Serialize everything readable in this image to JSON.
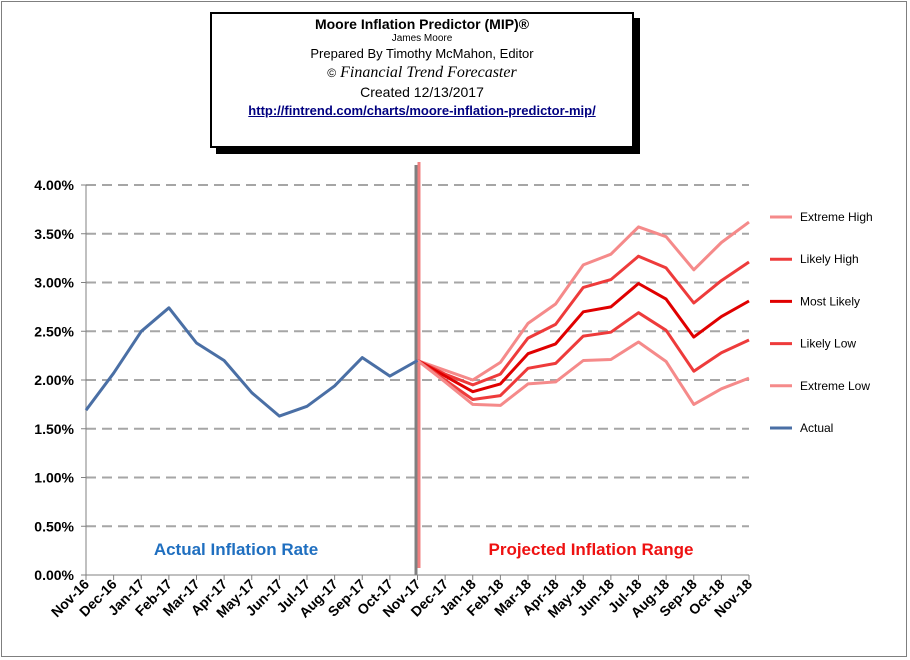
{
  "header": {
    "title": "Moore Inflation Predictor (MIP)®",
    "author": "James Moore",
    "prepared": "Prepared  By Timothy McMahon, Editor",
    "brand": "Financial Trend Forecaster",
    "copyright_symbol": "©",
    "created": "Created  12/13/2017",
    "url": "http://fintrend.com/charts/moore-inflation-predictor-mip/"
  },
  "annotations": {
    "actual_label": "Actual Inflation Rate",
    "projected_label": "Projected Inflation Range"
  },
  "colors": {
    "actual": "#4a6fa5",
    "extreme": "#f58a8a",
    "likely": "#ee3b3b",
    "most_likely": "#e00000",
    "actual_label": "#1f6fc0",
    "projected_label": "#ee1111",
    "divider_gray": "#808080",
    "divider_red": "#f08080"
  },
  "chart_data": {
    "type": "line",
    "categories": [
      "Nov-16",
      "Dec-16",
      "Jan-17",
      "Feb-17",
      "Mar-17",
      "Apr-17",
      "May-17",
      "Jun-17",
      "Jul-17",
      "Aug-17",
      "Sep-17",
      "Oct-17",
      "Nov-17",
      "Dec-17",
      "Jan-18",
      "Feb-18",
      "Mar-18",
      "Apr-18",
      "May-18",
      "Jun-18",
      "Jul-18",
      "Aug-18",
      "Sep-18",
      "Oct-18",
      "Nov-18"
    ],
    "y_ticks": [
      "0.00%",
      "0.50%",
      "1.00%",
      "1.50%",
      "2.00%",
      "2.50%",
      "3.00%",
      "3.50%",
      "4.00%"
    ],
    "ylim": [
      0,
      4.0
    ],
    "grid": true,
    "legend_position": "right",
    "series": [
      {
        "name": "Extreme High",
        "color_key": "extreme",
        "values": [
          null,
          null,
          null,
          null,
          null,
          null,
          null,
          null,
          null,
          null,
          null,
          null,
          2.2,
          2.1,
          2.0,
          2.18,
          2.58,
          2.78,
          3.18,
          3.29,
          3.57,
          3.47,
          3.13,
          3.41,
          3.62
        ]
      },
      {
        "name": "Likely High",
        "color_key": "likely",
        "values": [
          null,
          null,
          null,
          null,
          null,
          null,
          null,
          null,
          null,
          null,
          null,
          null,
          2.2,
          2.06,
          1.95,
          2.06,
          2.43,
          2.57,
          2.95,
          3.03,
          3.27,
          3.15,
          2.79,
          3.02,
          3.21
        ]
      },
      {
        "name": "Most Likely",
        "color_key": "most_likely",
        "values": [
          null,
          null,
          null,
          null,
          null,
          null,
          null,
          null,
          null,
          null,
          null,
          null,
          2.2,
          2.04,
          1.88,
          1.96,
          2.27,
          2.37,
          2.7,
          2.75,
          2.99,
          2.83,
          2.44,
          2.65,
          2.81
        ]
      },
      {
        "name": "Likely Low",
        "color_key": "likely",
        "values": [
          null,
          null,
          null,
          null,
          null,
          null,
          null,
          null,
          null,
          null,
          null,
          null,
          2.2,
          2.0,
          1.8,
          1.84,
          2.12,
          2.17,
          2.45,
          2.49,
          2.69,
          2.51,
          2.09,
          2.28,
          2.41
        ]
      },
      {
        "name": "Extreme Low",
        "color_key": "extreme",
        "values": [
          null,
          null,
          null,
          null,
          null,
          null,
          null,
          null,
          null,
          null,
          null,
          null,
          2.2,
          1.98,
          1.75,
          1.74,
          1.96,
          1.98,
          2.2,
          2.21,
          2.39,
          2.19,
          1.75,
          1.91,
          2.02
        ]
      },
      {
        "name": "Actual",
        "color_key": "actual",
        "values": [
          1.69,
          2.07,
          2.5,
          2.74,
          2.38,
          2.2,
          1.87,
          1.63,
          1.73,
          1.94,
          2.23,
          2.04,
          2.2,
          null,
          null,
          null,
          null,
          null,
          null,
          null,
          null,
          null,
          null,
          null,
          null
        ]
      }
    ]
  }
}
